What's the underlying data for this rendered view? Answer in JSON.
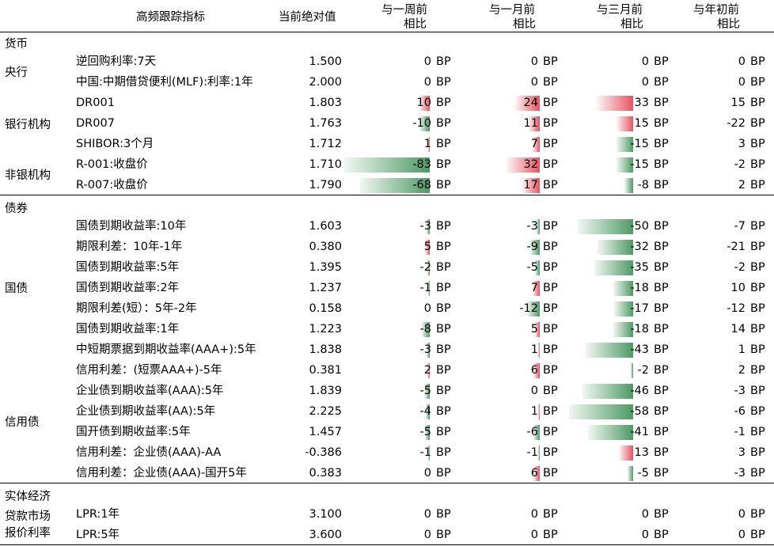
{
  "header": {
    "indicator": "高频跟踪指标",
    "current": "当前绝对值",
    "week_1": "与一周前",
    "week_2": "相比",
    "month_1": "与一月前",
    "month_2": "相比",
    "quarter_1": "与三月前",
    "quarter_2": "相比",
    "ytd_1": "与年初前",
    "ytd_2": "相比"
  },
  "unit": "BP",
  "colors": {
    "positive": "#e8525e",
    "negative": "#4d9a64"
  },
  "sections": {
    "money": "货币",
    "bond": "债券",
    "economy": "实体经济"
  },
  "categories": {
    "central_bank": "央行",
    "bank": "银行机构",
    "nonbank": "非银机构",
    "treasury": "国债",
    "credit": "信用债",
    "lpr_1": "贷款市场",
    "lpr_2": "报价利率"
  },
  "rows": [
    {
      "name": "逆回购利率:7天",
      "value": "1.500",
      "w": 0,
      "m": 0,
      "q": 0,
      "y": 0
    },
    {
      "name": "中国:中期借贷便利(MLF):利率:1年",
      "value": "2.000",
      "w": 0,
      "m": 0,
      "q": 0,
      "y": 0
    },
    {
      "name": "DR001",
      "value": "1.803",
      "w": 10,
      "m": 24,
      "q": 33,
      "y": 15
    },
    {
      "name": "DR007",
      "value": "1.763",
      "w": -10,
      "m": 11,
      "q": 15,
      "y": -22
    },
    {
      "name": "SHIBOR:3个月",
      "value": "1.712",
      "w": 1,
      "m": 7,
      "q": -15,
      "y": 3
    },
    {
      "name": "R-001:收盘价",
      "value": "1.710",
      "w": -83,
      "m": 32,
      "q": -15,
      "y": -2
    },
    {
      "name": "R-007:收盘价",
      "value": "1.790",
      "w": -68,
      "m": 17,
      "q": -8,
      "y": 2
    },
    {
      "name": "国债到期收益率:10年",
      "value": "1.603",
      "w": -3,
      "m": -3,
      "q": -50,
      "y": -7
    },
    {
      "name": "期限利差：10年-1年",
      "value": "0.380",
      "w": 5,
      "m": -9,
      "q": -32,
      "y": -21
    },
    {
      "name": "国债到期收益率:5年",
      "value": "1.395",
      "w": -2,
      "m": -5,
      "q": -35,
      "y": -2
    },
    {
      "name": "国债到期收益率:2年",
      "value": "1.237",
      "w": -1,
      "m": 7,
      "q": -18,
      "y": 10
    },
    {
      "name": "期限利差(短）：5年-2年",
      "value": "0.158",
      "w": 0,
      "m": -12,
      "q": -17,
      "y": -12
    },
    {
      "name": "国债到期收益率:1年",
      "value": "1.223",
      "w": -8,
      "m": 5,
      "q": -18,
      "y": 14
    },
    {
      "name": "中短期票据到期收益率(AAA+):5年",
      "value": "1.838",
      "w": -3,
      "m": 1,
      "q": -43,
      "y": 1
    },
    {
      "name": "信用利差：(短票AAA+)-5年",
      "value": "0.381",
      "w": 2,
      "m": 6,
      "q": -2,
      "y": 2
    },
    {
      "name": "企业债到期收益率(AAA):5年",
      "value": "1.839",
      "w": -5,
      "m": 0,
      "q": -46,
      "y": -3
    },
    {
      "name": "企业债到期收益率(AA):5年",
      "value": "2.225",
      "w": -4,
      "m": 1,
      "q": -58,
      "y": -6
    },
    {
      "name": "国开债到期收益率:5年",
      "value": "1.457",
      "w": -5,
      "m": -6,
      "q": -41,
      "y": -1
    },
    {
      "name": "信用利差：企业债(AAA)-AA",
      "value": "-0.386",
      "w": -1,
      "m": -1,
      "q": 13,
      "y": 3
    },
    {
      "name": "信用利差：企业债(AAA)-国开5年",
      "value": "0.383",
      "w": 0,
      "m": 6,
      "q": -5,
      "y": -3
    },
    {
      "name": "LPR:1年",
      "value": "3.100",
      "w": 0,
      "m": 0,
      "q": 0,
      "y": 0
    },
    {
      "name": "LPR:5年",
      "value": "3.600",
      "w": 0,
      "m": 0,
      "q": 0,
      "y": 0
    }
  ]
}
